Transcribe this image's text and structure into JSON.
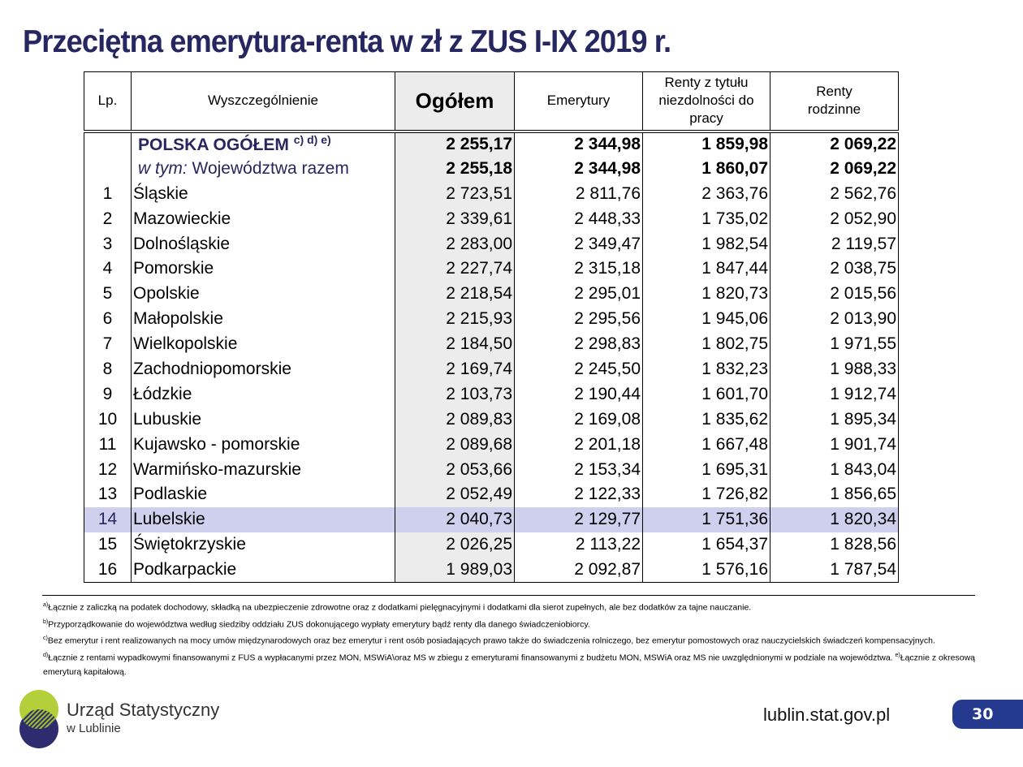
{
  "title": "Przeciętna emerytura-renta w zł z ZUS I-IX  2019 r.",
  "headers": [
    "Lp.",
    "Wyszczególnienie",
    "Ogółem",
    "Emerytury",
    "Renty z tytułu niezdolności do pracy",
    "Renty rodzinne"
  ],
  "summary": [
    {
      "label": "POLSKA OGÓŁEM",
      "sup": "c) d) e)",
      "values": [
        "2 255,17",
        "2 344,98",
        "1 859,98",
        "2 069,22"
      ]
    },
    {
      "label_italic": "w tym:",
      "label": " Województwa razem",
      "values": [
        "2 255,18",
        "2 344,98",
        "1 860,07",
        "2 069,22"
      ]
    }
  ],
  "rows": [
    [
      "1",
      "Śląskie",
      "2 723,51",
      "2 811,76",
      "2 363,76",
      "2 562,76"
    ],
    [
      "2",
      "Mazowieckie",
      "2 339,61",
      "2 448,33",
      "1 735,02",
      "2 052,90"
    ],
    [
      "3",
      "Dolnośląskie",
      "2 283,00",
      "2 349,47",
      "1 982,54",
      "2 119,57"
    ],
    [
      "4",
      "Pomorskie",
      "2 227,74",
      "2 315,18",
      "1 847,44",
      "2 038,75"
    ],
    [
      "5",
      "Opolskie",
      "2 218,54",
      "2 295,01",
      "1 820,73",
      "2 015,56"
    ],
    [
      "6",
      "Małopolskie",
      "2 215,93",
      "2 295,56",
      "1 945,06",
      "2 013,90"
    ],
    [
      "7",
      "Wielkopolskie",
      "2 184,50",
      "2 298,83",
      "1 802,75",
      "1 971,55"
    ],
    [
      "8",
      "Zachodniopomorskie",
      "2 169,74",
      "2 245,50",
      "1 832,23",
      "1 988,33"
    ],
    [
      "9",
      "Łódzkie",
      "2 103,73",
      "2 190,44",
      "1 601,70",
      "1 912,74"
    ],
    [
      "10",
      "Lubuskie",
      "2 089,83",
      "2 169,08",
      "1 835,62",
      "1 895,34"
    ],
    [
      "11",
      "Kujawsko - pomorskie",
      "2 089,68",
      "2 201,18",
      "1 667,48",
      "1 901,74"
    ],
    [
      "12",
      "Warmińsko-mazurskie",
      "2 053,66",
      "2 153,34",
      "1 695,31",
      "1 843,04"
    ],
    [
      "13",
      "Podlaskie",
      "2 052,49",
      "2 122,33",
      "1 726,82",
      "1 856,65"
    ],
    [
      "14",
      "Lubelskie",
      "2 040,73",
      "2 129,77",
      "1 751,36",
      "1 820,34"
    ],
    [
      "15",
      "Świętokrzyskie",
      "2 026,25",
      "2 113,22",
      "1 654,37",
      "1 828,56"
    ],
    [
      "16",
      "Podkarpackie",
      "1 989,03",
      "2 092,87",
      "1 576,16",
      "1 787,54"
    ]
  ],
  "highlight_row": "14",
  "footnotes": [
    {
      "mark": "a)",
      "text": "Łącznie z zaliczką na podatek dochodowy, składką na ubezpieczenie zdrowotne oraz z dodatkami pielęgnacyjnymi i dodatkami dla sierot zupełnych, ale bez dodatków za tajne nauczanie."
    },
    {
      "mark": "b)",
      "text": "Przyporządkowanie do województwa według siedziby oddziału ZUS dokonującego wypłaty emerytury bądź renty dla danego świadczeniobiorcy."
    },
    {
      "mark": "c)",
      "text": "Bez emerytur i rent realizowanych na mocy umów międzynarodowych oraz bez emerytur i rent osób posiadających prawo także do świadczenia rolniczego, bez emerytur pomostowych oraz nauczycielskich świadczeń kompensacyjnych."
    },
    {
      "mark": "d)",
      "text": "Łącznie z rentami wypadkowymi finansowanymi z FUS a wypłacanymi przez MON, MSWiA\\oraz MS w zbiegu z emeryturami finansowanymi z budżetu MON, MSWiA oraz MS nie uwzględnionymi w podziale na województwa. ",
      "mark2": "e)",
      "text2": "Łącznie z okresową emeryturą kapitałową."
    }
  ],
  "logo": {
    "line1": "Urząd Statystyczny",
    "line2": "w Lublinie"
  },
  "url": "lublin.stat.gov.pl",
  "page_number": "30",
  "colors": {
    "title": "#262660",
    "highlight": "#cfd0ee",
    "ogolem_bg": "#ececec",
    "page_badge": "#233a8f"
  }
}
